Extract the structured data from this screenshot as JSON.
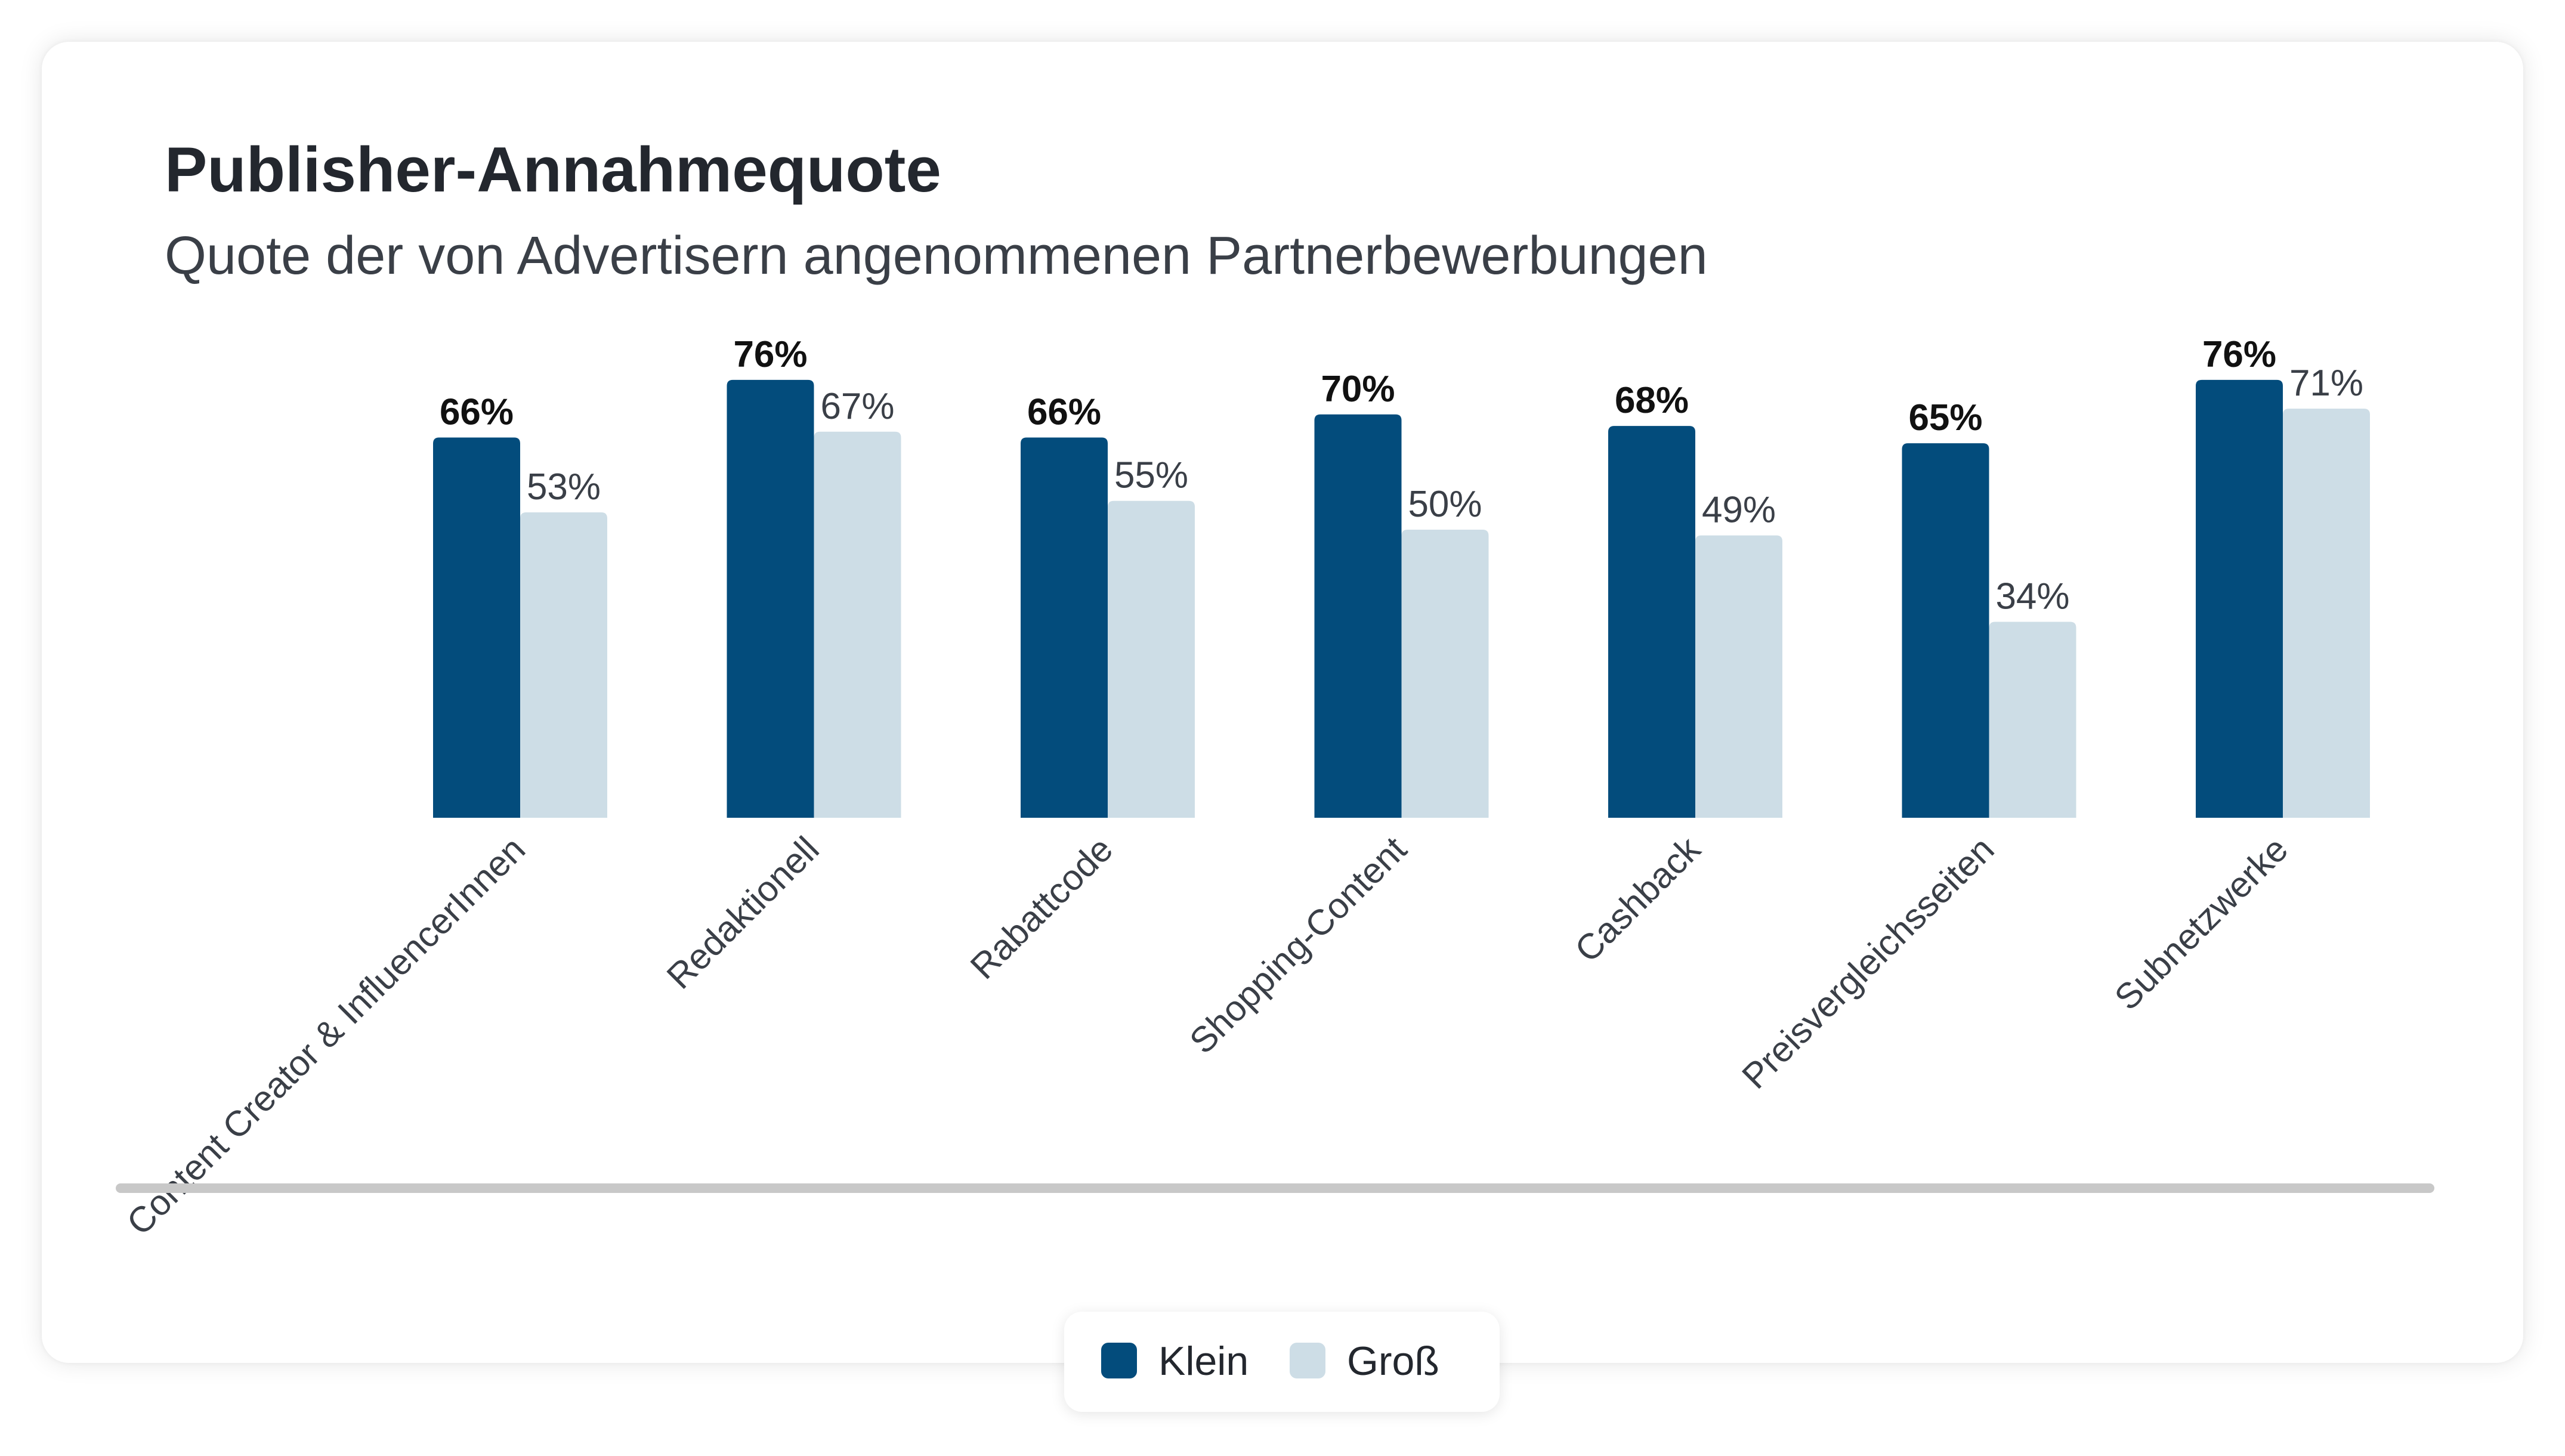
{
  "chart_data": {
    "type": "bar",
    "title": "Publisher-Annahmequote",
    "subtitle": "Quote der von Advertisern angenommenen Partnerbewerbungen",
    "categories": [
      "Content Creator & InfluencerInnen",
      "Redaktionell",
      "Rabattcode",
      "Shopping-Content",
      "Cashback",
      "Preisvergleichsseiten",
      "Subnetzwerke"
    ],
    "series": [
      {
        "name": "Klein",
        "color": "#034c7c",
        "values": [
          66,
          76,
          66,
          70,
          68,
          65,
          76
        ],
        "labels": [
          "66%",
          "76%",
          "66%",
          "70%",
          "68%",
          "65%",
          "76%"
        ]
      },
      {
        "name": "Groß",
        "color": "#cddde6",
        "values": [
          53,
          67,
          55,
          50,
          49,
          34,
          71
        ],
        "labels": [
          "53%",
          "67%",
          "55%",
          "50%",
          "49%",
          "34%",
          "71%"
        ]
      }
    ],
    "ylim": [
      0,
      100
    ],
    "grid": false,
    "legend_position": "bottom-center"
  }
}
